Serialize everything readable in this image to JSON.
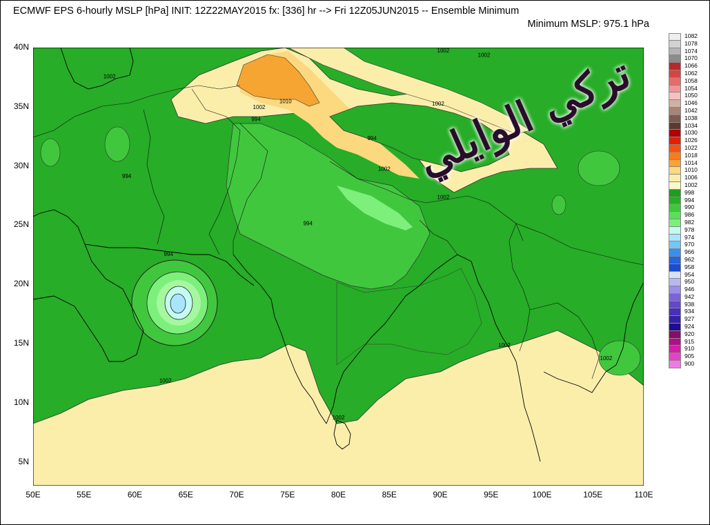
{
  "header": {
    "title": "ECMWF EPS 6-hourly MSLP [hPa] INIT: 12Z22MAY2015 fx: [336] hr --> Fri 12Z05JUN2015 -- Ensemble Minimum",
    "subtitle": "Minimum MSLP: 975.1 hPa"
  },
  "axes": {
    "lat_ticks": [
      "40N",
      "35N",
      "30N",
      "25N",
      "20N",
      "15N",
      "10N",
      "5N"
    ],
    "lon_ticks": [
      "50E",
      "55E",
      "60E",
      "65E",
      "70E",
      "75E",
      "80E",
      "85E",
      "90E",
      "95E",
      "100E",
      "105E",
      "110E"
    ]
  },
  "map": {
    "lon_range": [
      50,
      110
    ],
    "lat_range": [
      3,
      40
    ],
    "contour_labels": [
      {
        "text": "1002",
        "lon": 57.5,
        "lat": 37.4
      },
      {
        "text": "1010",
        "lon": 74.8,
        "lat": 35.3
      },
      {
        "text": "1002",
        "lon": 72.2,
        "lat": 34.8
      },
      {
        "text": "994",
        "lon": 71.9,
        "lat": 33.8
      },
      {
        "text": "1002",
        "lon": 90.3,
        "lat": 39.6
      },
      {
        "text": "1002",
        "lon": 94.3,
        "lat": 39.2
      },
      {
        "text": "1002",
        "lon": 89.8,
        "lat": 35.1
      },
      {
        "text": "994",
        "lon": 83.3,
        "lat": 32.2
      },
      {
        "text": "1002",
        "lon": 84.5,
        "lat": 29.6
      },
      {
        "text": "1002",
        "lon": 90.3,
        "lat": 27.2
      },
      {
        "text": "994",
        "lon": 59.2,
        "lat": 29.0
      },
      {
        "text": "994",
        "lon": 77.0,
        "lat": 25.0
      },
      {
        "text": "994",
        "lon": 63.3,
        "lat": 22.4
      },
      {
        "text": "1002",
        "lon": 96.3,
        "lat": 14.7
      },
      {
        "text": "1002",
        "lon": 106.3,
        "lat": 13.6
      },
      {
        "text": "1002",
        "lon": 63.0,
        "lat": 11.7
      },
      {
        "text": "1002",
        "lon": 80.0,
        "lat": 8.6
      }
    ],
    "cyclone_center": {
      "lon": 64.2,
      "lat": 18.3
    },
    "colors": {
      "yellow": "#fbeeab",
      "light_orange": "#fcd87f",
      "orange": "#f6a533",
      "green_dark": "#27ad27",
      "green_mid": "#41c73e",
      "green_light": "#5ae058",
      "green_pale": "#7cf07a",
      "green_paler": "#a6f7a0",
      "cyan": "#c3fbf0",
      "light_blue": "#a8e6ff"
    }
  },
  "watermark": {
    "text": "تركي الوايلي"
  },
  "legend": {
    "items": [
      {
        "label": "1082",
        "color": "#eeeeee"
      },
      {
        "label": "1078",
        "color": "#d2d2d2"
      },
      {
        "label": "1074",
        "color": "#b4b4b4"
      },
      {
        "label": "1070",
        "color": "#8c8c8c"
      },
      {
        "label": "1066",
        "color": "#b8292b"
      },
      {
        "label": "1062",
        "color": "#d64545"
      },
      {
        "label": "1058",
        "color": "#e86b6b"
      },
      {
        "label": "1054",
        "color": "#f09696"
      },
      {
        "label": "1050",
        "color": "#f4c0c0"
      },
      {
        "label": "1046",
        "color": "#d0b0a4"
      },
      {
        "label": "1042",
        "color": "#a78478"
      },
      {
        "label": "1038",
        "color": "#7f5a4e"
      },
      {
        "label": "1034",
        "color": "#5c3a2e"
      },
      {
        "label": "1030",
        "color": "#b00000"
      },
      {
        "label": "1026",
        "color": "#e02000"
      },
      {
        "label": "1022",
        "color": "#f85010"
      },
      {
        "label": "1018",
        "color": "#fb7a1c"
      },
      {
        "label": "1014",
        "color": "#f6a533"
      },
      {
        "label": "1010",
        "color": "#fcd87f"
      },
      {
        "label": "1006",
        "color": "#fbeeab"
      },
      {
        "label": "1002",
        "color": "#fbf7c8"
      },
      {
        "label": "998",
        "color": "#1e9e1e"
      },
      {
        "label": "994",
        "color": "#27ad27"
      },
      {
        "label": "990",
        "color": "#41c73e"
      },
      {
        "label": "986",
        "color": "#5ae058"
      },
      {
        "label": "982",
        "color": "#7cf07a"
      },
      {
        "label": "978",
        "color": "#c3fbf0"
      },
      {
        "label": "974",
        "color": "#a8e6ff"
      },
      {
        "label": "970",
        "color": "#74c8f4"
      },
      {
        "label": "966",
        "color": "#3c8ee8"
      },
      {
        "label": "962",
        "color": "#2266e0"
      },
      {
        "label": "958",
        "color": "#1a4bd0"
      },
      {
        "label": "954",
        "color": "#d8e0f8"
      },
      {
        "label": "950",
        "color": "#b8b8f0"
      },
      {
        "label": "946",
        "color": "#9a8ee6"
      },
      {
        "label": "942",
        "color": "#7a64d8"
      },
      {
        "label": "938",
        "color": "#6248c8"
      },
      {
        "label": "934",
        "color": "#4a30b8"
      },
      {
        "label": "927",
        "color": "#3620a6"
      },
      {
        "label": "924",
        "color": "#200c90"
      },
      {
        "label": "920",
        "color": "#8a0a6a"
      },
      {
        "label": "915",
        "color": "#b0108a"
      },
      {
        "label": "910",
        "color": "#d020a8"
      },
      {
        "label": "905",
        "color": "#e840c4"
      },
      {
        "label": "900",
        "color": "#f07ae0"
      }
    ]
  }
}
